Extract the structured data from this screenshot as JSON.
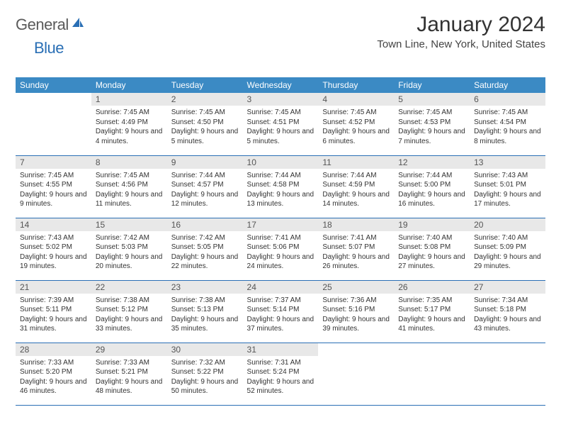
{
  "brand": {
    "part1": "General",
    "part2": "Blue"
  },
  "title": "January 2024",
  "location": "Town Line, New York, United States",
  "colors": {
    "header_bg": "#3b8ac4",
    "header_text": "#ffffff",
    "daynum_bg": "#e8e8e8",
    "border": "#2a6fb5",
    "brand_gray": "#5a5a5a",
    "brand_blue": "#2a6fb5"
  },
  "weekdays": [
    "Sunday",
    "Monday",
    "Tuesday",
    "Wednesday",
    "Thursday",
    "Friday",
    "Saturday"
  ],
  "weeks": [
    [
      null,
      {
        "n": "1",
        "sr": "7:45 AM",
        "ss": "4:49 PM",
        "dl": "9 hours and 4 minutes."
      },
      {
        "n": "2",
        "sr": "7:45 AM",
        "ss": "4:50 PM",
        "dl": "9 hours and 5 minutes."
      },
      {
        "n": "3",
        "sr": "7:45 AM",
        "ss": "4:51 PM",
        "dl": "9 hours and 5 minutes."
      },
      {
        "n": "4",
        "sr": "7:45 AM",
        "ss": "4:52 PM",
        "dl": "9 hours and 6 minutes."
      },
      {
        "n": "5",
        "sr": "7:45 AM",
        "ss": "4:53 PM",
        "dl": "9 hours and 7 minutes."
      },
      {
        "n": "6",
        "sr": "7:45 AM",
        "ss": "4:54 PM",
        "dl": "9 hours and 8 minutes."
      }
    ],
    [
      {
        "n": "7",
        "sr": "7:45 AM",
        "ss": "4:55 PM",
        "dl": "9 hours and 9 minutes."
      },
      {
        "n": "8",
        "sr": "7:45 AM",
        "ss": "4:56 PM",
        "dl": "9 hours and 11 minutes."
      },
      {
        "n": "9",
        "sr": "7:44 AM",
        "ss": "4:57 PM",
        "dl": "9 hours and 12 minutes."
      },
      {
        "n": "10",
        "sr": "7:44 AM",
        "ss": "4:58 PM",
        "dl": "9 hours and 13 minutes."
      },
      {
        "n": "11",
        "sr": "7:44 AM",
        "ss": "4:59 PM",
        "dl": "9 hours and 14 minutes."
      },
      {
        "n": "12",
        "sr": "7:44 AM",
        "ss": "5:00 PM",
        "dl": "9 hours and 16 minutes."
      },
      {
        "n": "13",
        "sr": "7:43 AM",
        "ss": "5:01 PM",
        "dl": "9 hours and 17 minutes."
      }
    ],
    [
      {
        "n": "14",
        "sr": "7:43 AM",
        "ss": "5:02 PM",
        "dl": "9 hours and 19 minutes."
      },
      {
        "n": "15",
        "sr": "7:42 AM",
        "ss": "5:03 PM",
        "dl": "9 hours and 20 minutes."
      },
      {
        "n": "16",
        "sr": "7:42 AM",
        "ss": "5:05 PM",
        "dl": "9 hours and 22 minutes."
      },
      {
        "n": "17",
        "sr": "7:41 AM",
        "ss": "5:06 PM",
        "dl": "9 hours and 24 minutes."
      },
      {
        "n": "18",
        "sr": "7:41 AM",
        "ss": "5:07 PM",
        "dl": "9 hours and 26 minutes."
      },
      {
        "n": "19",
        "sr": "7:40 AM",
        "ss": "5:08 PM",
        "dl": "9 hours and 27 minutes."
      },
      {
        "n": "20",
        "sr": "7:40 AM",
        "ss": "5:09 PM",
        "dl": "9 hours and 29 minutes."
      }
    ],
    [
      {
        "n": "21",
        "sr": "7:39 AM",
        "ss": "5:11 PM",
        "dl": "9 hours and 31 minutes."
      },
      {
        "n": "22",
        "sr": "7:38 AM",
        "ss": "5:12 PM",
        "dl": "9 hours and 33 minutes."
      },
      {
        "n": "23",
        "sr": "7:38 AM",
        "ss": "5:13 PM",
        "dl": "9 hours and 35 minutes."
      },
      {
        "n": "24",
        "sr": "7:37 AM",
        "ss": "5:14 PM",
        "dl": "9 hours and 37 minutes."
      },
      {
        "n": "25",
        "sr": "7:36 AM",
        "ss": "5:16 PM",
        "dl": "9 hours and 39 minutes."
      },
      {
        "n": "26",
        "sr": "7:35 AM",
        "ss": "5:17 PM",
        "dl": "9 hours and 41 minutes."
      },
      {
        "n": "27",
        "sr": "7:34 AM",
        "ss": "5:18 PM",
        "dl": "9 hours and 43 minutes."
      }
    ],
    [
      {
        "n": "28",
        "sr": "7:33 AM",
        "ss": "5:20 PM",
        "dl": "9 hours and 46 minutes."
      },
      {
        "n": "29",
        "sr": "7:33 AM",
        "ss": "5:21 PM",
        "dl": "9 hours and 48 minutes."
      },
      {
        "n": "30",
        "sr": "7:32 AM",
        "ss": "5:22 PM",
        "dl": "9 hours and 50 minutes."
      },
      {
        "n": "31",
        "sr": "7:31 AM",
        "ss": "5:24 PM",
        "dl": "9 hours and 52 minutes."
      },
      null,
      null,
      null
    ]
  ],
  "labels": {
    "sunrise": "Sunrise:",
    "sunset": "Sunset:",
    "daylight": "Daylight:"
  }
}
